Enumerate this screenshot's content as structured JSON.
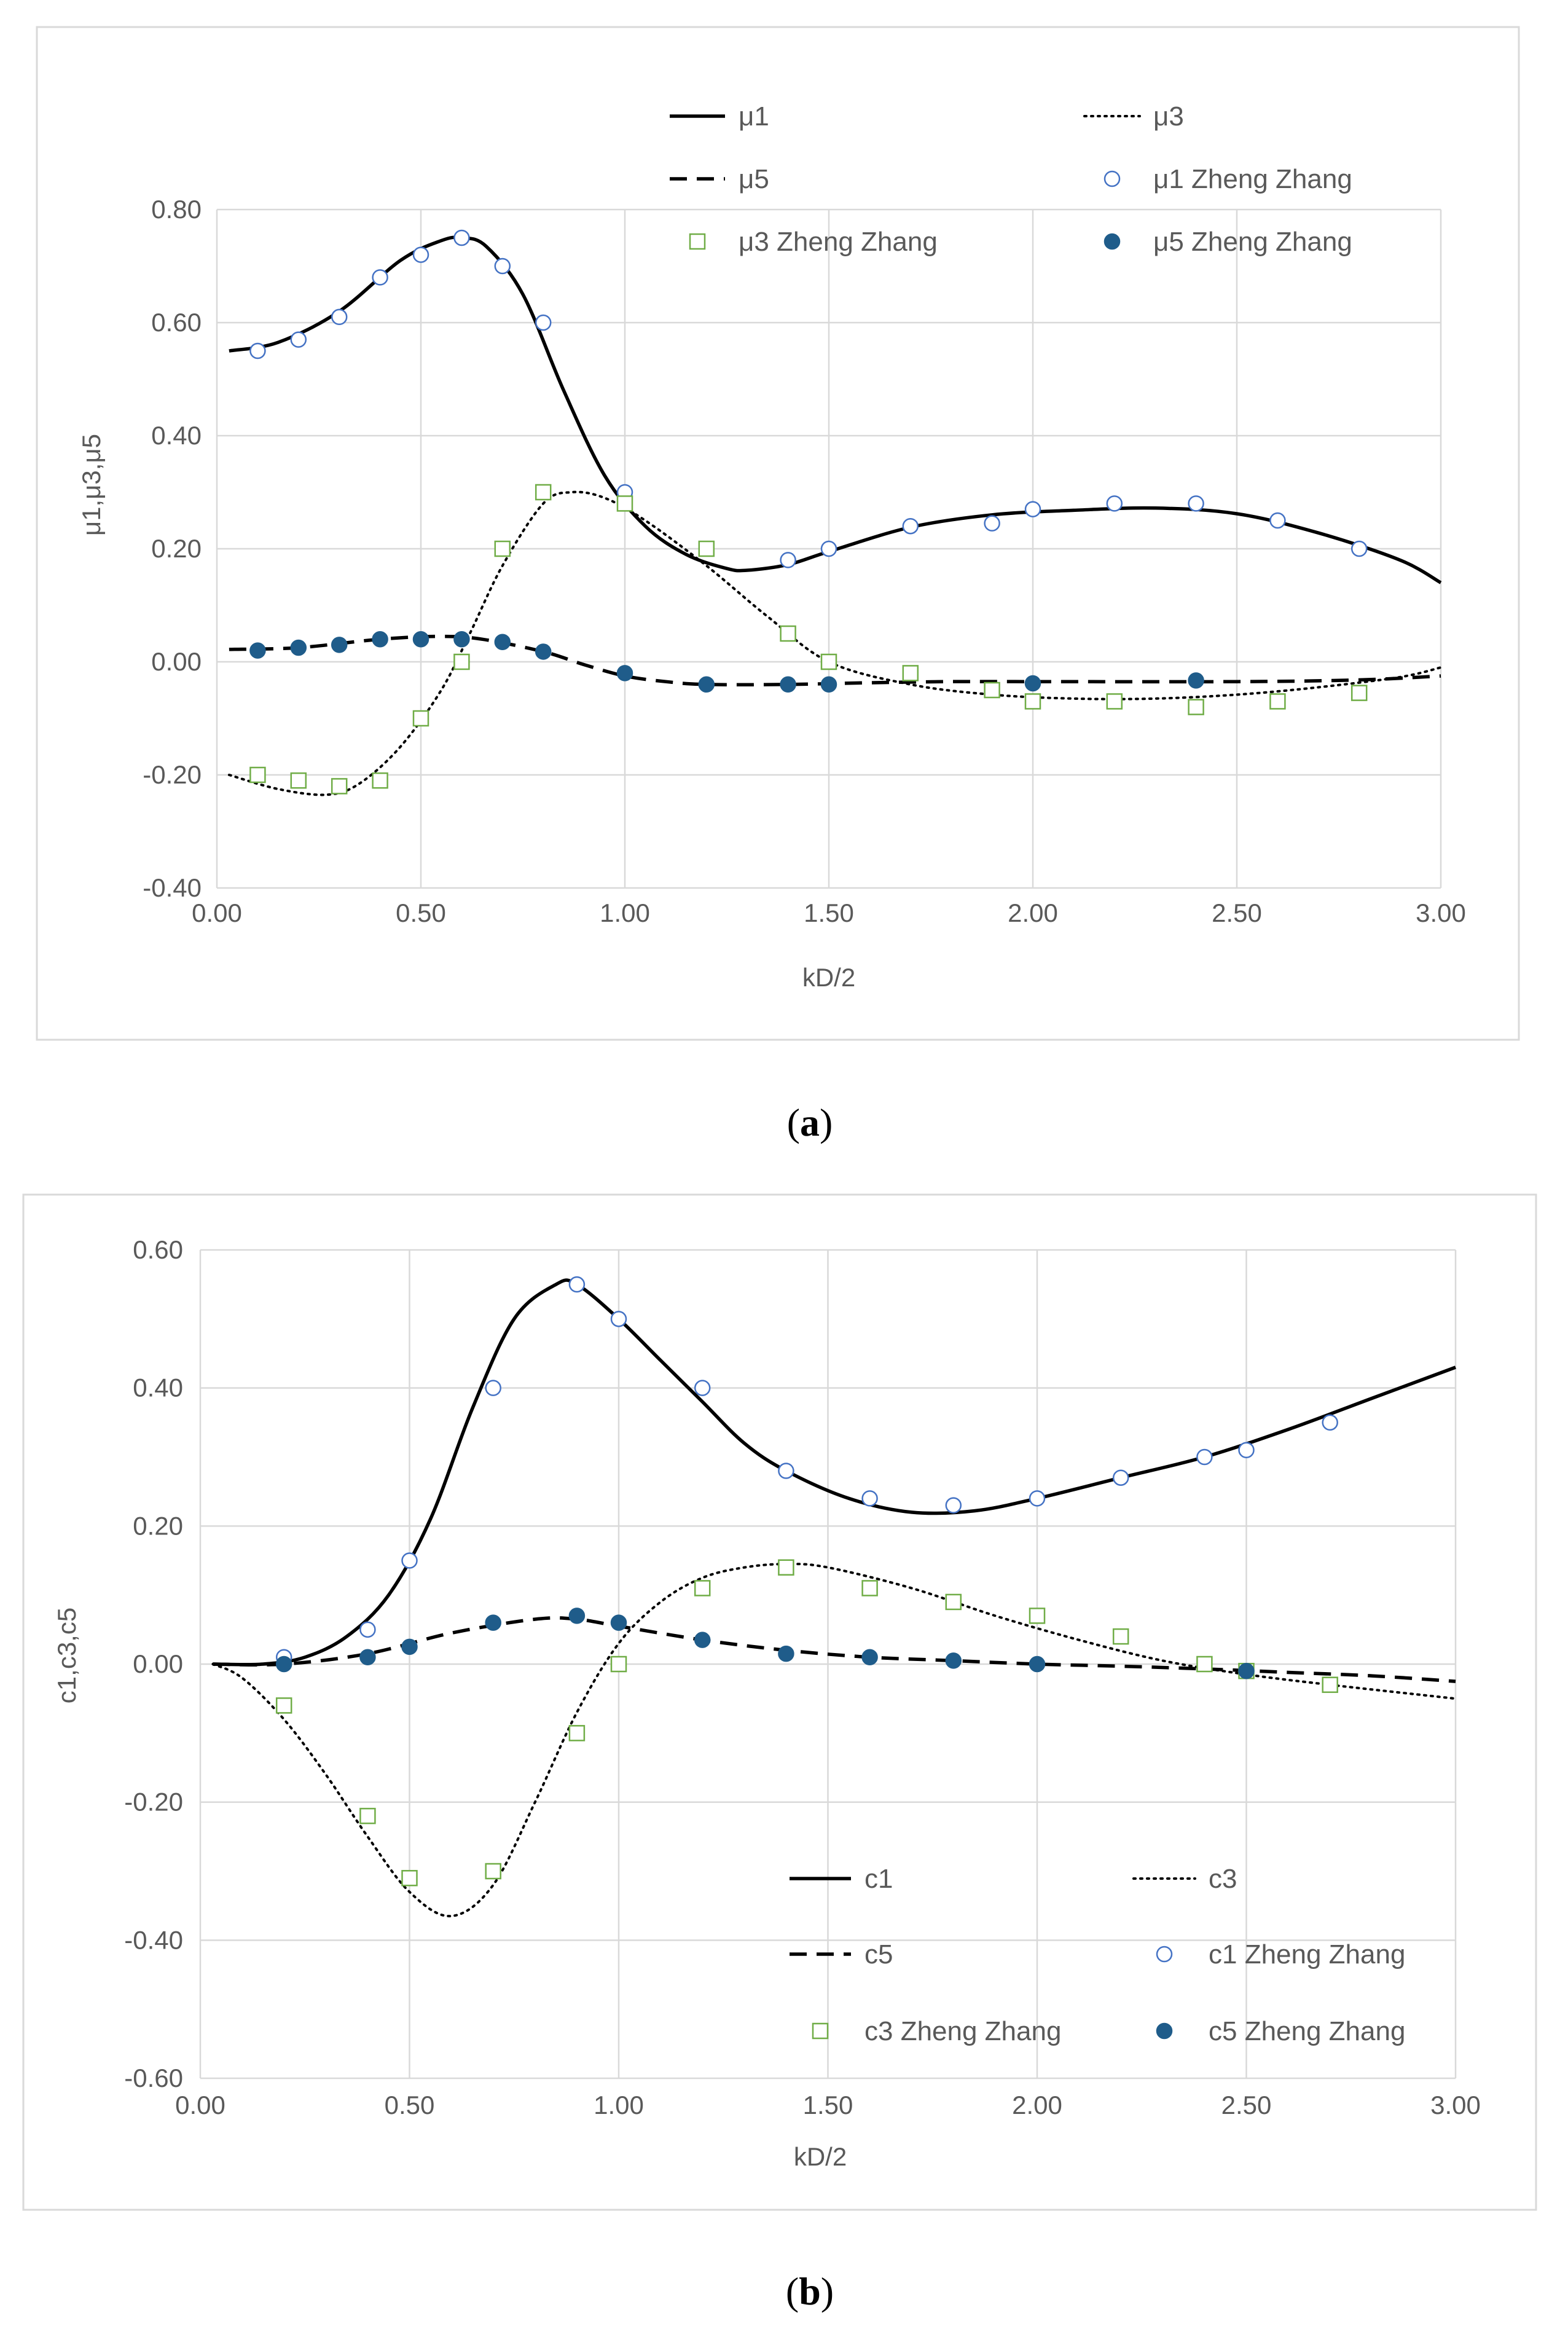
{
  "colors": {
    "line": "#000000",
    "open_marker": "#4472c4",
    "square_marker": "#70ad47",
    "filled_marker": "#1f5c8a",
    "grid": "#d9d9d9",
    "text": "#595959"
  },
  "chart_data": [
    {
      "type": "line",
      "caption": {
        "open": "(",
        "letter": "a",
        "close": ")"
      },
      "xlabel": "kD/2",
      "ylabel": "μ1,μ3,μ5",
      "xlim": [
        0,
        3
      ],
      "ylim": [
        -0.4,
        0.8
      ],
      "x_ticks": [
        "0.00",
        "0.50",
        "1.00",
        "1.50",
        "2.00",
        "2.50",
        "3.00"
      ],
      "y_ticks": [
        "-0.40",
        "-0.20",
        "0.00",
        "0.20",
        "0.40",
        "0.60",
        "0.80"
      ],
      "series": [
        {
          "name": "μ1",
          "kind": "line",
          "dash": "solid",
          "x": [
            0.03,
            0.15,
            0.3,
            0.45,
            0.55,
            0.6,
            0.66,
            0.75,
            0.85,
            0.95,
            1.05,
            1.15,
            1.25,
            1.3,
            1.4,
            1.5,
            1.7,
            1.9,
            2.1,
            2.3,
            2.5,
            2.7,
            2.9,
            3.0
          ],
          "y": [
            0.55,
            0.565,
            0.62,
            0.71,
            0.745,
            0.75,
            0.735,
            0.65,
            0.48,
            0.33,
            0.24,
            0.19,
            0.165,
            0.162,
            0.172,
            0.195,
            0.238,
            0.26,
            0.268,
            0.272,
            0.262,
            0.228,
            0.18,
            0.14
          ]
        },
        {
          "name": "μ3",
          "kind": "line",
          "dash": "dotted",
          "x": [
            0.03,
            0.15,
            0.27,
            0.35,
            0.45,
            0.55,
            0.62,
            0.7,
            0.8,
            0.87,
            0.95,
            1.05,
            1.2,
            1.35,
            1.5,
            1.7,
            1.9,
            2.1,
            2.3,
            2.5,
            2.7,
            2.9,
            3.0
          ],
          "y": [
            -0.2,
            -0.225,
            -0.235,
            -0.215,
            -0.15,
            -0.05,
            0.05,
            0.17,
            0.28,
            0.3,
            0.29,
            0.25,
            0.17,
            0.08,
            0.0,
            -0.04,
            -0.058,
            -0.065,
            -0.065,
            -0.058,
            -0.045,
            -0.027,
            -0.01
          ]
        },
        {
          "name": "μ5",
          "kind": "line",
          "dash": "dashed",
          "x": [
            0.03,
            0.2,
            0.4,
            0.55,
            0.65,
            0.8,
            0.9,
            1.0,
            1.1,
            1.2,
            1.4,
            1.6,
            1.8,
            2.0,
            2.5,
            2.8,
            3.0
          ],
          "y": [
            0.022,
            0.025,
            0.04,
            0.045,
            0.04,
            0.018,
            -0.005,
            -0.025,
            -0.035,
            -0.04,
            -0.04,
            -0.037,
            -0.035,
            -0.035,
            -0.035,
            -0.032,
            -0.025
          ]
        },
        {
          "name": "μ1 Zheng Zhang",
          "kind": "marker",
          "marker": "circle-open",
          "x": [
            0.1,
            0.2,
            0.3,
            0.4,
            0.5,
            0.6,
            0.7,
            0.8,
            1.0,
            1.4,
            1.5,
            1.7,
            1.9,
            2.0,
            2.2,
            2.4,
            2.6,
            2.8
          ],
          "y": [
            0.55,
            0.57,
            0.61,
            0.68,
            0.72,
            0.75,
            0.7,
            0.6,
            0.3,
            0.18,
            0.2,
            0.24,
            0.245,
            0.27,
            0.28,
            0.28,
            0.25,
            0.2
          ]
        },
        {
          "name": "μ3 Zheng Zhang",
          "kind": "marker",
          "marker": "square-open",
          "x": [
            0.1,
            0.2,
            0.3,
            0.4,
            0.5,
            0.6,
            0.7,
            0.8,
            1.0,
            1.2,
            1.4,
            1.5,
            1.7,
            1.9,
            2.0,
            2.2,
            2.4,
            2.6,
            2.8
          ],
          "y": [
            -0.2,
            -0.21,
            -0.22,
            -0.21,
            -0.1,
            0.0,
            0.2,
            0.3,
            0.28,
            0.2,
            0.05,
            0.0,
            -0.02,
            -0.05,
            -0.07,
            -0.07,
            -0.08,
            -0.07,
            -0.055
          ]
        },
        {
          "name": "μ5 Zheng Zhang",
          "kind": "marker",
          "marker": "circle-filled",
          "x": [
            0.1,
            0.2,
            0.3,
            0.4,
            0.5,
            0.6,
            0.7,
            0.8,
            1.0,
            1.2,
            1.4,
            1.5,
            2.0,
            2.4
          ],
          "y": [
            0.02,
            0.025,
            0.03,
            0.04,
            0.04,
            0.04,
            0.035,
            0.018,
            -0.02,
            -0.04,
            -0.04,
            -0.04,
            -0.038,
            -0.033
          ]
        }
      ],
      "legend_order": [
        [
          "μ1",
          "μ3"
        ],
        [
          "μ5",
          "μ1 Zheng Zhang"
        ],
        [
          "μ3 Zheng Zhang",
          "μ5 Zheng Zhang"
        ]
      ]
    },
    {
      "type": "line",
      "caption": {
        "open": "(",
        "letter": "b",
        "close": ")"
      },
      "xlabel": "kD/2",
      "ylabel": "c1,c3,c5",
      "xlim": [
        0,
        3
      ],
      "ylim": [
        -0.6,
        0.6
      ],
      "x_ticks": [
        "0.00",
        "0.50",
        "1.00",
        "1.50",
        "2.00",
        "2.50",
        "3.00"
      ],
      "y_ticks": [
        "-0.60",
        "-0.40",
        "-0.20",
        "0.00",
        "0.20",
        "0.40",
        "0.60"
      ],
      "series": [
        {
          "name": "c1",
          "kind": "line",
          "dash": "solid",
          "x": [
            0.03,
            0.15,
            0.25,
            0.35,
            0.45,
            0.55,
            0.65,
            0.75,
            0.85,
            0.9,
            1.0,
            1.1,
            1.2,
            1.3,
            1.4,
            1.55,
            1.7,
            1.85,
            2.0,
            2.2,
            2.4,
            2.6,
            2.8,
            3.0
          ],
          "y": [
            0.0,
            0.0,
            0.01,
            0.04,
            0.1,
            0.21,
            0.37,
            0.5,
            0.55,
            0.55,
            0.5,
            0.44,
            0.38,
            0.32,
            0.28,
            0.24,
            0.22,
            0.222,
            0.24,
            0.27,
            0.3,
            0.34,
            0.385,
            0.43
          ]
        },
        {
          "name": "c3",
          "kind": "line",
          "dash": "dotted",
          "x": [
            0.03,
            0.1,
            0.2,
            0.3,
            0.4,
            0.5,
            0.6,
            0.7,
            0.8,
            0.9,
            1.0,
            1.1,
            1.2,
            1.3,
            1.4,
            1.5,
            1.7,
            1.9,
            2.1,
            2.3,
            2.5,
            2.7,
            3.0
          ],
          "y": [
            0.0,
            -0.02,
            -0.08,
            -0.16,
            -0.25,
            -0.33,
            -0.365,
            -0.32,
            -0.2,
            -0.07,
            0.03,
            0.09,
            0.125,
            0.14,
            0.145,
            0.14,
            0.11,
            0.07,
            0.035,
            0.005,
            -0.015,
            -0.03,
            -0.05
          ]
        },
        {
          "name": "c5",
          "kind": "line",
          "dash": "dashed",
          "x": [
            0.03,
            0.2,
            0.4,
            0.6,
            0.8,
            0.9,
            1.0,
            1.2,
            1.4,
            1.6,
            1.8,
            2.0,
            2.2,
            2.4,
            2.6,
            2.8,
            3.0
          ],
          "y": [
            0.0,
            0.0,
            0.015,
            0.045,
            0.065,
            0.065,
            0.055,
            0.035,
            0.02,
            0.01,
            0.005,
            0.0,
            -0.003,
            -0.007,
            -0.012,
            -0.017,
            -0.025
          ]
        },
        {
          "name": "c1 Zheng Zhang",
          "kind": "marker",
          "marker": "circle-open",
          "x": [
            0.2,
            0.4,
            0.5,
            0.7,
            0.9,
            1.0,
            1.2,
            1.4,
            1.6,
            1.8,
            2.0,
            2.2,
            2.4,
            2.5,
            2.7
          ],
          "y": [
            0.01,
            0.05,
            0.15,
            0.4,
            0.55,
            0.5,
            0.4,
            0.28,
            0.24,
            0.23,
            0.24,
            0.27,
            0.3,
            0.31,
            0.35
          ]
        },
        {
          "name": "c3 Zheng Zhang",
          "kind": "marker",
          "marker": "square-open",
          "x": [
            0.2,
            0.4,
            0.5,
            0.7,
            0.9,
            1.0,
            1.2,
            1.4,
            1.6,
            1.8,
            2.0,
            2.2,
            2.4,
            2.5,
            2.7
          ],
          "y": [
            -0.06,
            -0.22,
            -0.31,
            -0.3,
            -0.1,
            0.0,
            0.11,
            0.14,
            0.11,
            0.09,
            0.07,
            0.04,
            0.0,
            -0.01,
            -0.03
          ]
        },
        {
          "name": "c5 Zheng Zhang",
          "kind": "marker",
          "marker": "circle-filled",
          "x": [
            0.2,
            0.4,
            0.5,
            0.7,
            0.9,
            1.0,
            1.2,
            1.4,
            1.6,
            1.8,
            2.0,
            2.5
          ],
          "y": [
            0.0,
            0.01,
            0.025,
            0.06,
            0.07,
            0.06,
            0.035,
            0.015,
            0.01,
            0.005,
            0.0,
            -0.01
          ]
        }
      ],
      "legend_order": [
        [
          "c1",
          "c3"
        ],
        [
          "c5",
          "c1 Zheng Zhang"
        ],
        [
          "c3 Zheng Zhang",
          "c5 Zheng Zhang"
        ]
      ]
    }
  ]
}
